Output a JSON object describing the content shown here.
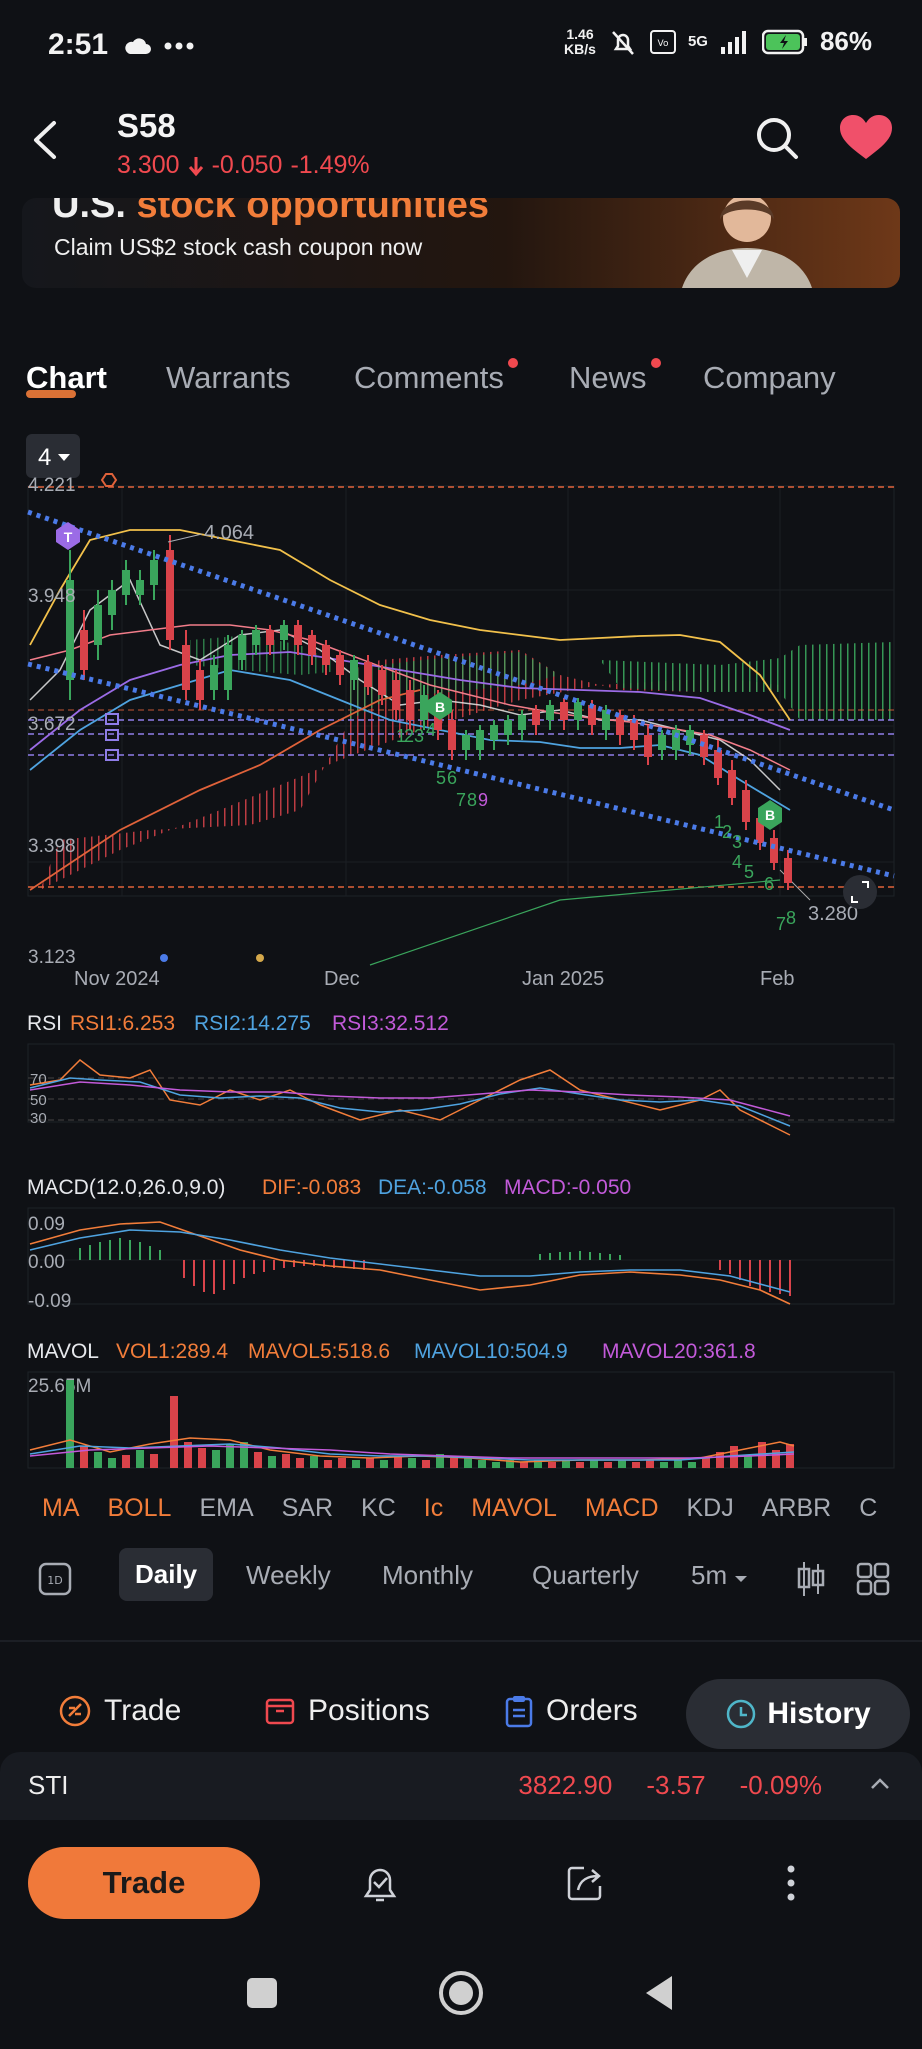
{
  "status_bar": {
    "time": "2:51",
    "net_speed_value": "1.46",
    "net_speed_unit": "KB/s",
    "network": "5G",
    "battery": "86%"
  },
  "header": {
    "ticker": "S58",
    "price": "3.300",
    "change": "-0.050",
    "change_pct": "-1.49%"
  },
  "banner": {
    "title_plain": "U.S. ",
    "title_highlight": "stock opportunities",
    "subtitle": "Claim US$2 stock cash coupon now"
  },
  "tabs": [
    {
      "label": "Chart",
      "active": true,
      "dot": false
    },
    {
      "label": "Warrants",
      "active": false,
      "dot": false
    },
    {
      "label": "Comments",
      "active": false,
      "dot": true
    },
    {
      "label": "News",
      "active": false,
      "dot": true
    },
    {
      "label": "Company",
      "active": false,
      "dot": false
    }
  ],
  "chart": {
    "period_selector": "4",
    "price_ticks": [
      "4.221",
      "3.948",
      "3.672",
      "3.398",
      "3.123"
    ],
    "high_label": "4.064",
    "last_label": "3.280",
    "x_ticks": [
      "Nov 2024",
      "Dec",
      "Jan 2025",
      "Feb"
    ],
    "markers": {
      "t": "T",
      "b1": "B",
      "b2": "B"
    },
    "seq_labels_a": [
      "1",
      "2",
      "3",
      "4",
      "5",
      "6",
      "7",
      "8",
      "9"
    ],
    "seq_labels_b": [
      "1",
      "2",
      "3",
      "4",
      "5",
      "6",
      "7",
      "8"
    ]
  },
  "rsi": {
    "name": "RSI",
    "rsi1": "RSI1:6.253",
    "rsi2": "RSI2:14.275",
    "rsi3": "RSI3:32.512",
    "levels": [
      "70",
      "50",
      "30"
    ]
  },
  "macd": {
    "name": "MACD(12.0,26.0,9.0)",
    "dif": "DIF:-0.083",
    "dea": "DEA:-0.058",
    "macd": "MACD:-0.050",
    "levels": [
      "0.09",
      "0.00",
      "-0.09"
    ]
  },
  "mavol": {
    "name": "MAVOL",
    "vol1": "VOL1:289.4",
    "mavol5": "MAVOL5:518.6",
    "mavol10": "MAVOL10:504.9",
    "mavol20": "MAVOL20:361.8",
    "max_label": "25.65M"
  },
  "indicators": [
    {
      "label": "MA",
      "on": true
    },
    {
      "label": "BOLL",
      "on": true
    },
    {
      "label": "EMA",
      "on": false
    },
    {
      "label": "SAR",
      "on": false
    },
    {
      "label": "KC",
      "on": false
    },
    {
      "label": "Ic",
      "on": true
    },
    {
      "label": "MAVOL",
      "on": true
    },
    {
      "label": "MACD",
      "on": true
    },
    {
      "label": "KDJ",
      "on": false
    },
    {
      "label": "ARBR",
      "on": false
    },
    {
      "label": "C",
      "on": false
    }
  ],
  "periods": {
    "daily": "Daily",
    "weekly": "Weekly",
    "monthly": "Monthly",
    "quarterly": "Quarterly",
    "minute": "5m"
  },
  "trade_bar": {
    "trade": "Trade",
    "positions": "Positions",
    "orders": "Orders",
    "history": "History"
  },
  "sti": {
    "name": "STI",
    "value": "3822.90",
    "change": "-3.57",
    "change_pct": "-0.09%"
  },
  "bottom": {
    "trade_button": "Trade"
  },
  "colors": {
    "accent": "#f27d3a",
    "down": "#f0494f",
    "up": "#3aa55c",
    "blue": "#4b7be8"
  }
}
